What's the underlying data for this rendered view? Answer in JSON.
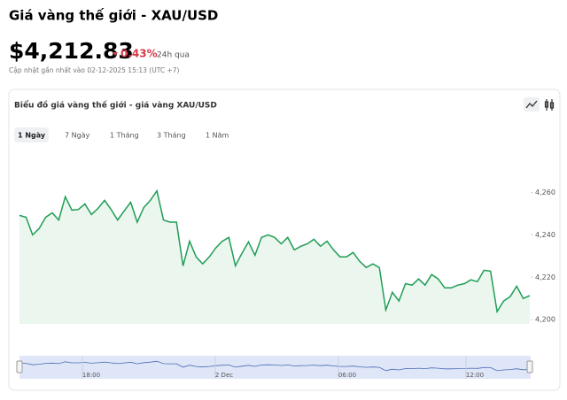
{
  "header": {
    "title": "Giá vàng thế giới - XAU/USD",
    "price": "$4,212.83",
    "change": "0.43%",
    "change_period": "24h qua",
    "updated": "Cập nhật gần nhất vào 02-12-2025 15:13 (UTC +7)"
  },
  "card": {
    "title": "Biểu đồ giá vàng thế giới - giá vàng XAU/USD",
    "tabs": [
      "1 Ngày",
      "7 Ngày",
      "1 Tháng",
      "3 Tháng",
      "1 Năm"
    ]
  },
  "chart_data": {
    "type": "line",
    "color": "#1f9d55",
    "values": [
      4249.2,
      4248.3,
      4240,
      4243,
      4248.3,
      4250.4,
      4247,
      4258,
      4251.7,
      4252,
      4254.6,
      4249.6,
      4252.5,
      4256.3,
      4252,
      4247,
      4251.3,
      4255.4,
      4246,
      4252.9,
      4256.3,
      4260.8,
      4247,
      4246,
      4246,
      4225.4,
      4237,
      4229.6,
      4226.3,
      4229.6,
      4233.8,
      4237,
      4238.8,
      4225.4,
      4231.3,
      4236.7,
      4230.4,
      4238.8,
      4240,
      4238.8,
      4235.8,
      4238.8,
      4232.9,
      4234.6,
      4235.8,
      4237.9,
      4234.6,
      4237,
      4232.9,
      4229.6,
      4229.6,
      4231.7,
      4227.5,
      4224.6,
      4226.3,
      4224.6,
      4204.6,
      4212.9,
      4208.8,
      4217,
      4216.3,
      4219.2,
      4216.3,
      4221.3,
      4219.2,
      4215,
      4215,
      4216.3,
      4217,
      4218.8,
      4217.9,
      4223.3,
      4222.9,
      4203.8,
      4208.8,
      4210.8,
      4215.8,
      4210,
      4211.3
    ],
    "ylim": [
      4198,
      4284
    ],
    "yticks": [
      {
        "value": 4200,
        "label": "4,200"
      },
      {
        "value": 4220,
        "label": "4,220"
      },
      {
        "value": 4240,
        "label": "4,240"
      },
      {
        "value": 4260,
        "label": "4,260"
      }
    ],
    "navigator_labels": [
      "18:00",
      "2 Dec",
      "06:00",
      "12:00"
    ]
  }
}
